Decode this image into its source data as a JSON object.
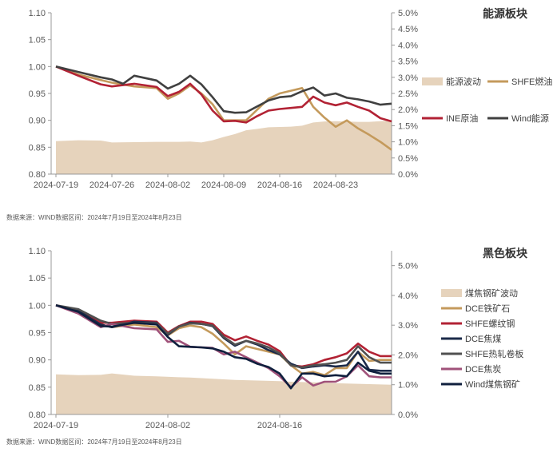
{
  "chart_data": [
    {
      "type": "line",
      "title": "能源板块",
      "source_note": "数据来源：WIND数据区间：2024年7月19日至2024年8月23日",
      "x_ticks": [
        "2024-07-19",
        "2024-07-26",
        "2024-08-02",
        "2024-08-09",
        "2024-08-16",
        "2024-08-23"
      ],
      "ylim": [
        0.8,
        1.1
      ],
      "y_ticks": [
        "0.80",
        "0.85",
        "0.90",
        "0.95",
        "1.00",
        "1.05",
        "1.10"
      ],
      "y2lim": [
        0,
        5
      ],
      "y2_ticks": [
        "0.0%",
        "0.5%",
        "1.0%",
        "1.5%",
        "2.0%",
        "2.5%",
        "3.0%",
        "3.5%",
        "4.0%",
        "4.5%",
        "5.0%"
      ],
      "legend_position": "right",
      "area": {
        "name": "能源波动",
        "color": "#e6d3bc",
        "axis": "right",
        "x": [
          0,
          2,
          4,
          5,
          7,
          9,
          11,
          12,
          13,
          14,
          15,
          16,
          17,
          18,
          19,
          20,
          21,
          22,
          23,
          24,
          25,
          26,
          27,
          28,
          29,
          30
        ],
        "values": [
          1.02,
          1.05,
          1.04,
          0.98,
          0.99,
          1.0,
          1.0,
          1.01,
          0.98,
          1.05,
          1.15,
          1.24,
          1.36,
          1.4,
          1.45,
          1.46,
          1.47,
          1.5,
          1.6,
          1.63,
          1.64,
          1.63,
          1.62,
          1.62,
          1.64,
          1.66
        ]
      },
      "series": [
        {
          "name": "SHFE燃油",
          "color": "#c49a5c",
          "x": [
            0,
            2,
            4,
            5,
            7,
            9,
            10,
            11,
            12,
            13,
            14,
            15,
            16,
            17,
            18,
            19,
            20,
            21,
            22,
            23,
            24,
            25,
            26,
            27,
            28,
            29,
            30
          ],
          "values": [
            1.0,
            0.985,
            0.975,
            0.97,
            0.963,
            0.96,
            0.94,
            0.95,
            0.965,
            0.95,
            0.93,
            0.9,
            0.9,
            0.9,
            0.92,
            0.94,
            0.95,
            0.955,
            0.96,
            0.925,
            0.905,
            0.888,
            0.9,
            0.885,
            0.873,
            0.86,
            0.845
          ]
        },
        {
          "name": "INE原油",
          "color": "#b22234",
          "x": [
            0,
            2,
            4,
            5,
            7,
            9,
            10,
            11,
            12,
            13,
            14,
            15,
            16,
            17,
            18,
            19,
            20,
            21,
            22,
            23,
            24,
            25,
            26,
            27,
            28,
            29,
            30
          ],
          "values": [
            1.0,
            0.983,
            0.967,
            0.963,
            0.968,
            0.962,
            0.945,
            0.953,
            0.968,
            0.948,
            0.918,
            0.898,
            0.899,
            0.896,
            0.908,
            0.918,
            0.921,
            0.923,
            0.925,
            0.944,
            0.933,
            0.928,
            0.933,
            0.925,
            0.918,
            0.904,
            0.898
          ]
        },
        {
          "name": "Wind能源",
          "color": "#404040",
          "x": [
            0,
            2,
            4,
            5,
            6,
            7,
            9,
            10,
            11,
            12,
            13,
            14,
            15,
            16,
            17,
            18,
            19,
            20,
            21,
            22,
            23,
            24,
            25,
            26,
            27,
            28,
            29,
            30
          ],
          "values": [
            1.0,
            0.99,
            0.98,
            0.976,
            0.968,
            0.983,
            0.974,
            0.959,
            0.968,
            0.983,
            0.967,
            0.943,
            0.917,
            0.914,
            0.915,
            0.926,
            0.937,
            0.943,
            0.945,
            0.954,
            0.961,
            0.946,
            0.95,
            0.942,
            0.939,
            0.935,
            0.929,
            0.931
          ]
        }
      ]
    },
    {
      "type": "line",
      "title": "黑色板块",
      "source_note": "数据来源：WIND数据区间：2024年7月19日至2024年8月23日",
      "x_ticks": [
        "2024-07-19",
        "2024-08-02",
        "2024-08-16"
      ],
      "ylim": [
        0.8,
        1.1
      ],
      "y_ticks": [
        "0.80",
        "0.85",
        "0.90",
        "0.95",
        "1.00",
        "1.05",
        "1.10"
      ],
      "y2lim": [
        0,
        5.5
      ],
      "y2_ticks": [
        "0.0%",
        "1.0%",
        "2.0%",
        "3.0%",
        "4.0%",
        "5.0%"
      ],
      "legend_position": "right",
      "area": {
        "name": "煤焦钢矿波动",
        "color": "#e6d3bc",
        "axis": "right",
        "x": [
          0,
          2,
          4,
          5,
          7,
          9,
          11,
          12,
          13,
          14,
          15,
          16,
          17,
          18,
          19,
          20,
          21,
          22,
          23,
          24,
          25,
          26,
          27,
          28,
          29,
          30
        ],
        "values": [
          1.35,
          1.32,
          1.33,
          1.38,
          1.3,
          1.28,
          1.25,
          1.24,
          1.22,
          1.2,
          1.18,
          1.16,
          1.15,
          1.14,
          1.13,
          1.12,
          1.1,
          1.09,
          1.08,
          1.07,
          1.05,
          1.04,
          1.03,
          1.02,
          1.01,
          1.0
        ]
      },
      "series": [
        {
          "name": "DCE铁矿石",
          "color": "#c49a5c",
          "x": [
            0,
            2,
            4,
            5,
            7,
            9,
            10,
            11,
            12,
            13,
            14,
            15,
            16,
            17,
            18,
            19,
            20,
            21,
            22,
            23,
            24,
            25,
            26,
            27,
            28,
            29,
            30
          ],
          "values": [
            1.0,
            0.99,
            0.965,
            0.96,
            0.965,
            0.96,
            0.945,
            0.958,
            0.963,
            0.96,
            0.948,
            0.93,
            0.91,
            0.925,
            0.92,
            0.915,
            0.91,
            0.89,
            0.875,
            0.878,
            0.872,
            0.885,
            0.885,
            0.915,
            0.898,
            0.9,
            0.9
          ]
        },
        {
          "name": "SHFE螺纹钢",
          "color": "#b22234",
          "x": [
            0,
            2,
            4,
            5,
            7,
            9,
            10,
            11,
            12,
            13,
            14,
            15,
            16,
            17,
            18,
            19,
            20,
            21,
            22,
            23,
            24,
            25,
            26,
            27,
            28,
            29,
            30
          ],
          "values": [
            1.0,
            0.99,
            0.968,
            0.968,
            0.972,
            0.97,
            0.95,
            0.962,
            0.97,
            0.97,
            0.966,
            0.946,
            0.936,
            0.943,
            0.935,
            0.928,
            0.916,
            0.89,
            0.888,
            0.892,
            0.9,
            0.905,
            0.912,
            0.93,
            0.915,
            0.907,
            0.907
          ]
        },
        {
          "name": "DCE焦煤",
          "color": "#1b2a4a",
          "x": [
            0,
            2,
            4,
            5,
            7,
            9,
            10,
            11,
            12,
            13,
            14,
            15,
            16,
            17,
            18,
            19,
            20,
            21,
            22,
            23,
            24,
            25,
            26,
            27,
            28,
            29,
            30
          ],
          "values": [
            1.0,
            0.99,
            0.965,
            0.96,
            0.97,
            0.968,
            0.946,
            0.961,
            0.968,
            0.966,
            0.962,
            0.94,
            0.926,
            0.935,
            0.928,
            0.918,
            0.91,
            0.893,
            0.885,
            0.888,
            0.89,
            0.888,
            0.89,
            0.915,
            0.882,
            0.88,
            0.88
          ]
        },
        {
          "name": "SHFE热轧卷板",
          "color": "#505050",
          "x": [
            0,
            2,
            4,
            5,
            7,
            9,
            10,
            11,
            12,
            13,
            14,
            15,
            16,
            17,
            18,
            19,
            20,
            21,
            22,
            23,
            24,
            25,
            26,
            27,
            28,
            29,
            30
          ],
          "values": [
            1.0,
            0.993,
            0.972,
            0.966,
            0.968,
            0.967,
            0.948,
            0.961,
            0.967,
            0.966,
            0.963,
            0.942,
            0.928,
            0.935,
            0.93,
            0.923,
            0.912,
            0.89,
            0.886,
            0.89,
            0.892,
            0.895,
            0.9,
            0.925,
            0.905,
            0.895,
            0.895
          ]
        },
        {
          "name": "DCE焦炭",
          "color": "#a0527a",
          "x": [
            0,
            2,
            4,
            5,
            7,
            9,
            10,
            11,
            12,
            13,
            14,
            15,
            16,
            17,
            18,
            19,
            20,
            21,
            22,
            23,
            24,
            25,
            26,
            27,
            28,
            29,
            30
          ],
          "values": [
            1.0,
            0.985,
            0.96,
            0.966,
            0.958,
            0.956,
            0.933,
            0.935,
            0.924,
            0.923,
            0.922,
            0.91,
            0.915,
            0.905,
            0.895,
            0.885,
            0.87,
            0.85,
            0.868,
            0.853,
            0.86,
            0.86,
            0.87,
            0.89,
            0.87,
            0.868,
            0.868
          ]
        },
        {
          "name": "Wind煤焦钢矿",
          "color": "#0f1f3d",
          "x": [
            0,
            2,
            4,
            5,
            7,
            9,
            10,
            11,
            12,
            13,
            14,
            15,
            16,
            17,
            18,
            19,
            20,
            21,
            22,
            23,
            24,
            25,
            26,
            27,
            28,
            29,
            30
          ],
          "values": [
            1.0,
            0.988,
            0.962,
            0.961,
            0.968,
            0.965,
            0.942,
            0.925,
            0.924,
            0.923,
            0.921,
            0.915,
            0.905,
            0.902,
            0.893,
            0.887,
            0.875,
            0.848,
            0.875,
            0.875,
            0.87,
            0.872,
            0.87,
            0.895,
            0.88,
            0.875,
            0.875
          ]
        }
      ]
    }
  ]
}
